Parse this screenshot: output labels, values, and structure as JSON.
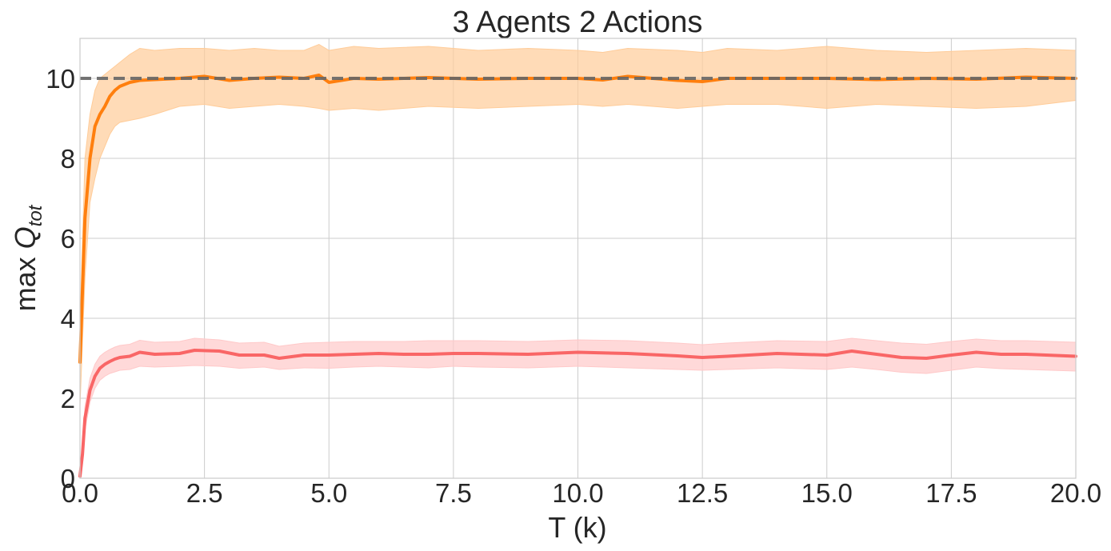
{
  "chart_data": {
    "type": "line",
    "title": "3 Agents 2 Actions",
    "xlabel": "T (k)",
    "ylabel_prefix": "max ",
    "ylabel_symbol": "Q",
    "ylabel_subscript": "tot",
    "xlim": [
      0,
      20
    ],
    "ylim": [
      0,
      11
    ],
    "x_ticks": [
      0,
      2.5,
      5,
      7.5,
      10,
      12.5,
      15,
      17.5,
      20
    ],
    "x_tick_labels": [
      "0.0",
      "2.5",
      "5.0",
      "7.5",
      "10.0",
      "12.5",
      "15.0",
      "17.5",
      "20.0"
    ],
    "y_ticks": [
      0,
      2,
      4,
      6,
      8,
      10
    ],
    "y_tick_labels": [
      "0",
      "2",
      "4",
      "6",
      "8",
      "10"
    ],
    "grid": true,
    "reference_line": {
      "y": 10,
      "style": "dashed",
      "color": "#666666"
    },
    "series": [
      {
        "color": "#ff7f0e",
        "band_color": "#ffcc99",
        "x": [
          0,
          0.1,
          0.2,
          0.3,
          0.4,
          0.5,
          0.6,
          0.7,
          0.8,
          1.0,
          1.2,
          1.5,
          2.0,
          2.5,
          3.0,
          3.5,
          4.0,
          4.5,
          4.8,
          5.0,
          5.5,
          6.0,
          7.0,
          8.0,
          9.0,
          10.0,
          10.5,
          11.0,
          12.0,
          12.5,
          13.0,
          14.0,
          15.0,
          16.0,
          17.0,
          18.0,
          19.0,
          20.0
        ],
        "y": [
          2.9,
          6.5,
          8.0,
          8.8,
          9.1,
          9.3,
          9.55,
          9.7,
          9.8,
          9.9,
          9.95,
          9.97,
          10.0,
          10.05,
          9.95,
          10.0,
          10.03,
          10.0,
          10.08,
          9.9,
          10.0,
          9.98,
          10.02,
          9.98,
          10.0,
          10.0,
          9.96,
          10.05,
          9.95,
          9.92,
          10.0,
          10.0,
          10.0,
          9.97,
          10.0,
          9.98,
          10.03,
          10.0
        ],
        "lower": [
          1.8,
          5.0,
          6.9,
          7.5,
          8.0,
          8.3,
          8.6,
          8.8,
          8.9,
          8.95,
          9.0,
          9.1,
          9.3,
          9.35,
          9.25,
          9.3,
          9.35,
          9.3,
          9.25,
          9.2,
          9.25,
          9.2,
          9.3,
          9.25,
          9.3,
          9.35,
          9.3,
          9.35,
          9.25,
          9.3,
          9.35,
          9.35,
          9.25,
          9.35,
          9.3,
          9.25,
          9.3,
          9.45
        ],
        "upper": [
          3.8,
          8.0,
          9.1,
          9.7,
          10.0,
          10.1,
          10.2,
          10.3,
          10.4,
          10.6,
          10.75,
          10.7,
          10.75,
          10.75,
          10.7,
          10.75,
          10.7,
          10.7,
          10.85,
          10.7,
          10.8,
          10.75,
          10.8,
          10.7,
          10.75,
          10.7,
          10.65,
          10.75,
          10.7,
          10.65,
          10.75,
          10.7,
          10.8,
          10.7,
          10.65,
          10.7,
          10.75,
          10.7
        ]
      },
      {
        "color": "#f96666",
        "band_color": "#ffc9c9",
        "x": [
          0,
          0.05,
          0.1,
          0.2,
          0.3,
          0.4,
          0.5,
          0.6,
          0.7,
          0.8,
          1.0,
          1.2,
          1.5,
          2.0,
          2.3,
          2.8,
          3.2,
          3.7,
          4.0,
          4.5,
          5.0,
          5.5,
          6.0,
          6.5,
          7.0,
          7.5,
          8.0,
          9.0,
          10.0,
          11.0,
          12.0,
          12.5,
          13.0,
          14.0,
          15.0,
          15.5,
          16.0,
          16.5,
          17.0,
          17.5,
          18.0,
          18.5,
          19.0,
          20.0
        ],
        "y": [
          0.05,
          0.6,
          1.5,
          2.2,
          2.55,
          2.75,
          2.85,
          2.92,
          2.98,
          3.02,
          3.05,
          3.15,
          3.1,
          3.12,
          3.2,
          3.18,
          3.08,
          3.08,
          3.0,
          3.08,
          3.08,
          3.1,
          3.12,
          3.1,
          3.1,
          3.12,
          3.12,
          3.1,
          3.15,
          3.12,
          3.06,
          3.02,
          3.05,
          3.12,
          3.08,
          3.18,
          3.1,
          3.02,
          3.0,
          3.08,
          3.15,
          3.1,
          3.1,
          3.05
        ],
        "lower": [
          0.0,
          0.4,
          1.2,
          1.9,
          2.25,
          2.45,
          2.55,
          2.62,
          2.66,
          2.7,
          2.72,
          2.8,
          2.78,
          2.8,
          2.82,
          2.8,
          2.75,
          2.78,
          2.72,
          2.76,
          2.75,
          2.78,
          2.8,
          2.78,
          2.76,
          2.8,
          2.78,
          2.76,
          2.8,
          2.76,
          2.72,
          2.7,
          2.72,
          2.76,
          2.72,
          2.78,
          2.72,
          2.65,
          2.62,
          2.7,
          2.78,
          2.74,
          2.72,
          2.68
        ],
        "upper": [
          0.1,
          0.8,
          1.8,
          2.5,
          2.85,
          3.05,
          3.15,
          3.22,
          3.28,
          3.32,
          3.35,
          3.45,
          3.4,
          3.42,
          3.5,
          3.46,
          3.38,
          3.4,
          3.3,
          3.38,
          3.4,
          3.42,
          3.42,
          3.42,
          3.44,
          3.44,
          3.44,
          3.42,
          3.46,
          3.44,
          3.38,
          3.34,
          3.38,
          3.44,
          3.42,
          3.5,
          3.44,
          3.38,
          3.35,
          3.42,
          3.48,
          3.44,
          3.44,
          3.4
        ]
      }
    ]
  }
}
